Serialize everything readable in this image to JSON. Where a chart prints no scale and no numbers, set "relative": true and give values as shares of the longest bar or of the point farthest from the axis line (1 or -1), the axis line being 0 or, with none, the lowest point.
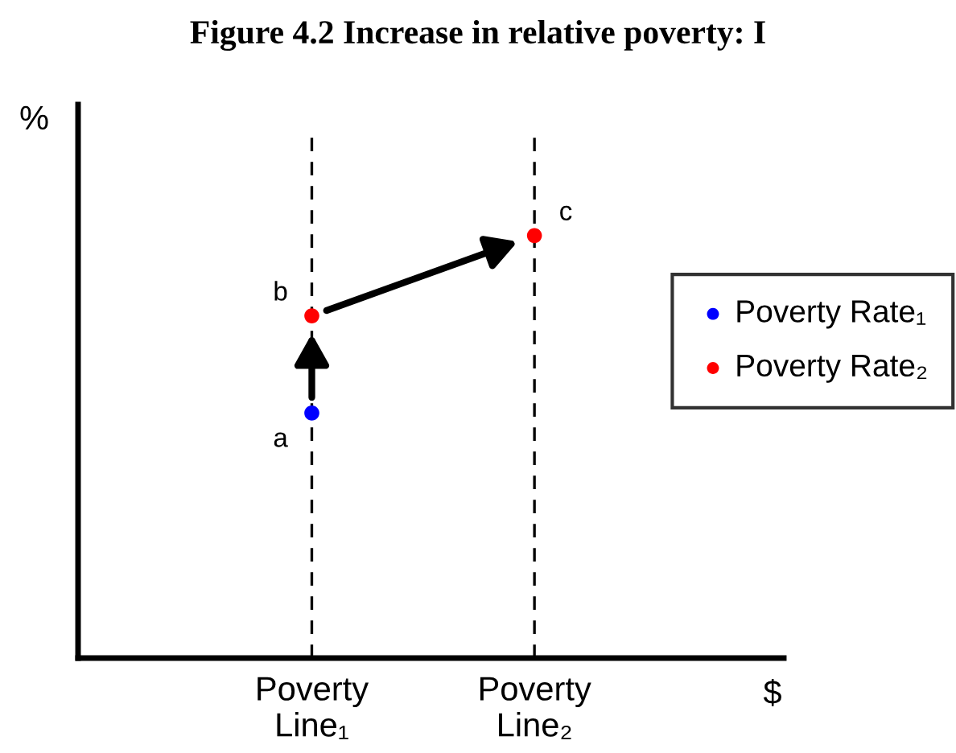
{
  "chart_data": {
    "type": "scatter",
    "title": "Figure 4.2 Increase in relative poverty: I",
    "xlabel": "$",
    "ylabel": "%",
    "relative": true,
    "categories": [
      "Poverty\nLine₁",
      "Poverty\nLine₂"
    ],
    "series": [
      {
        "name": "Poverty Rate₁",
        "color": "#0000ff",
        "values": [
          0.58,
          null
        ]
      },
      {
        "name": "Poverty Rate₂",
        "color": "#ff0000",
        "values": [
          0.81,
          1
        ]
      }
    ],
    "annotations": [
      {
        "text": "a",
        "x": "Poverty\nLine₁",
        "y": 0.58
      },
      {
        "text": "b",
        "x": "Poverty\nLine₁",
        "y": 0.81
      },
      {
        "text": "c",
        "x": "Poverty\nLine₂",
        "y": 1
      }
    ],
    "ref_lines": [
      {
        "axis": "x",
        "value": "Poverty\nLine₁",
        "color": "#000000",
        "line_style": "dashed"
      },
      {
        "axis": "x",
        "value": "Poverty\nLine₂",
        "color": "#000000",
        "line_style": "dashed"
      }
    ],
    "marker": "circle",
    "legend": "right",
    "grid": false
  }
}
